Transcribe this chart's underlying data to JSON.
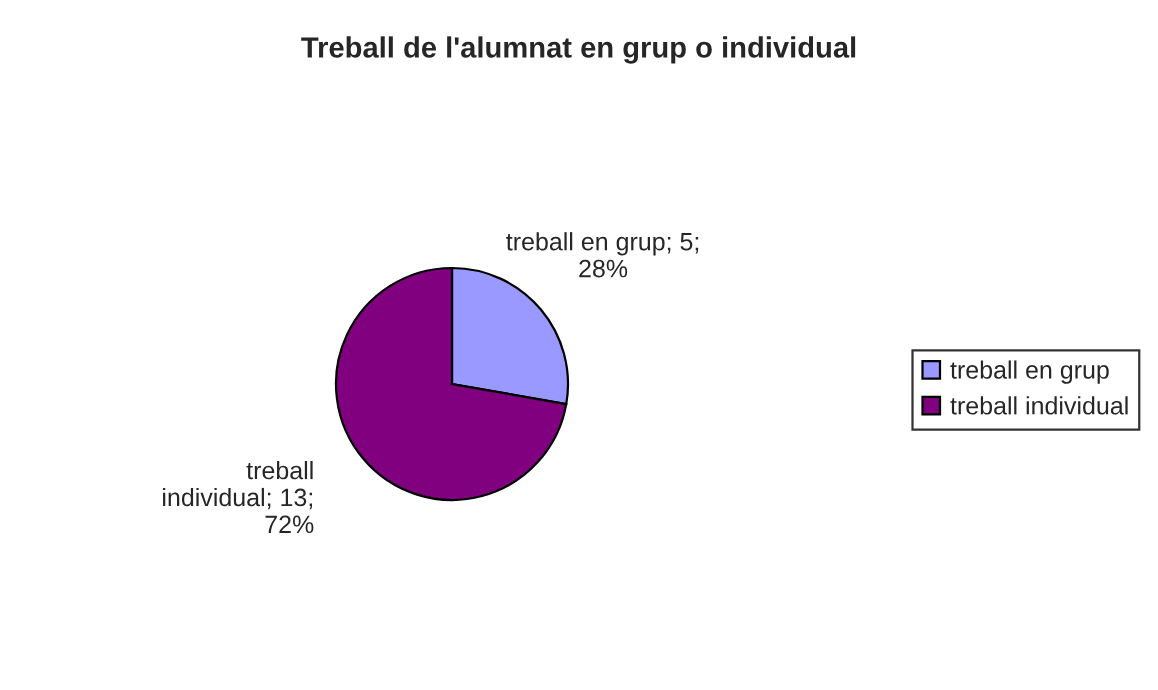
{
  "chart_data": {
    "type": "pie",
    "title": "Treball de l'alumnat en grup o individual",
    "categories": [
      "treball en grup",
      "treball individual"
    ],
    "values": [
      5,
      13
    ],
    "colors": [
      "#9999ff",
      "#800080"
    ],
    "value_labels": [
      "treball en grup; 5;\n28%",
      "treball\nindividual; 13;\n72%"
    ],
    "legend": "right"
  }
}
